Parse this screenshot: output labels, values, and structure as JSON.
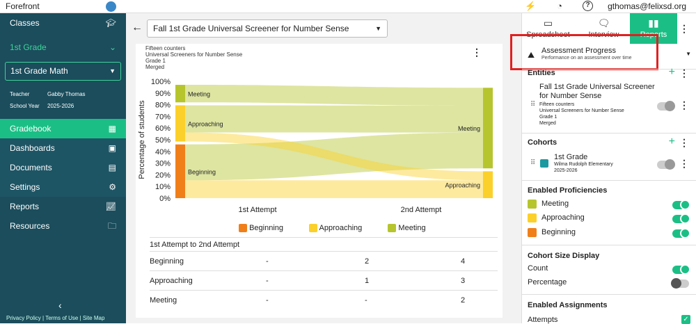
{
  "topbar": {
    "brand": "Forefront",
    "user": "gthomas@felixsd.org"
  },
  "sidebar": {
    "classes": "Classes",
    "grade": "1st Grade",
    "class_select": "1st Grade Math",
    "teacher_label": "Teacher",
    "teacher": "Gabby Thomas",
    "year_label": "School Year",
    "year": "2025-2026",
    "items": [
      {
        "label": "Gradebook"
      },
      {
        "label": "Dashboards"
      },
      {
        "label": "Documents"
      },
      {
        "label": "Settings"
      },
      {
        "label": "Reports"
      },
      {
        "label": "Resources"
      }
    ],
    "footer": {
      "privacy": "Privacy Policy",
      "terms": "Terms of Use",
      "sitemap": "Site Map"
    }
  },
  "main": {
    "assessment_select": "Fall 1st Grade Universal Screener for Number Sense",
    "meta": [
      "Fifteen counters",
      "Universal Screeners for Number Sense",
      "Grade 1",
      "Merged"
    ],
    "legend": [
      {
        "name": "Beginning",
        "color": "#f07f1a"
      },
      {
        "name": "Approaching",
        "color": "#fbd02a"
      },
      {
        "name": "Meeting",
        "color": "#b6c52e"
      }
    ],
    "table": {
      "header": "1st Attempt to 2nd Attempt",
      "rows": [
        {
          "label": "Beginning",
          "c1": "-",
          "c2": "2",
          "c3": "4"
        },
        {
          "label": "Approaching",
          "c1": "-",
          "c2": "1",
          "c3": "3"
        },
        {
          "label": "Meeting",
          "c1": "-",
          "c2": "-",
          "c3": "2"
        }
      ]
    }
  },
  "chart_data": {
    "type": "sankey",
    "ylabel": "Percentage of students",
    "yticks": [
      "0%",
      "10%",
      "20%",
      "30%",
      "40%",
      "50%",
      "60%",
      "70%",
      "80%",
      "90%",
      "100%"
    ],
    "categories": [
      "1st Attempt",
      "2nd Attempt"
    ],
    "nodes_1st": [
      {
        "name": "Beginning",
        "pct": 46
      },
      {
        "name": "Approaching",
        "pct": 31
      },
      {
        "name": "Meeting",
        "pct": 15
      }
    ],
    "nodes_2nd": [
      {
        "name": "Approaching",
        "pct": 23
      },
      {
        "name": "Meeting",
        "pct": 69
      }
    ],
    "flows": [
      {
        "from": "Beginning",
        "to": "Approaching",
        "count": 2
      },
      {
        "from": "Beginning",
        "to": "Meeting",
        "count": 4
      },
      {
        "from": "Approaching",
        "to": "Approaching",
        "count": 1
      },
      {
        "from": "Approaching",
        "to": "Meeting",
        "count": 3
      },
      {
        "from": "Meeting",
        "to": "Meeting",
        "count": 2
      }
    ]
  },
  "right": {
    "tabs": [
      {
        "label": "Spreadsheet"
      },
      {
        "label": "Interview"
      },
      {
        "label": "Reports"
      }
    ],
    "report_type": {
      "title": "Assessment Progress",
      "subtitle": "Performance on an assessment over time"
    },
    "entities": {
      "label": "Entities",
      "name": "Fall 1st Grade Universal Screener for Number Sense",
      "meta": [
        "Fifteen counters",
        "Universal Screeners for Number Sense",
        "Grade 1",
        "Merged"
      ]
    },
    "cohorts": {
      "label": "Cohorts",
      "name": "1st Grade",
      "school": "Wilma Rudolph Elementary",
      "year": "2025-2026",
      "color": "#1a9aa0"
    },
    "proficiencies": {
      "label": "Enabled Proficiencies",
      "items": [
        {
          "name": "Meeting",
          "color": "#b6c52e"
        },
        {
          "name": "Approaching",
          "color": "#fbd02a"
        },
        {
          "name": "Beginning",
          "color": "#f07f1a"
        }
      ]
    },
    "cohort_size": {
      "label": "Cohort Size Display",
      "count": "Count",
      "percentage": "Percentage"
    },
    "assignments": {
      "label": "Enabled Assignments",
      "item": "Attempts"
    }
  }
}
